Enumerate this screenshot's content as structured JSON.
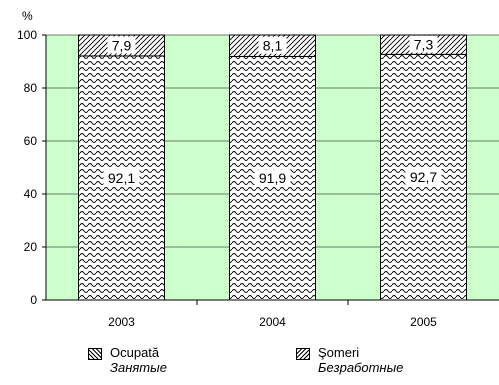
{
  "chart_data": {
    "type": "bar",
    "stacked": true,
    "unit_label": "%",
    "ylim": [
      0,
      100
    ],
    "yticks": [
      0,
      20,
      40,
      60,
      80,
      100
    ],
    "categories": [
      "2003",
      "2004",
      "2005"
    ],
    "series": [
      {
        "name": "Ocupată",
        "name_ru": "Занятые",
        "values": [
          92.1,
          91.9,
          92.7
        ],
        "labels": [
          "92,1",
          "91,9",
          "92,7"
        ],
        "pattern": "wave"
      },
      {
        "name": "Şomeri",
        "name_ru": "Безработные",
        "values": [
          7.9,
          8.1,
          7.3
        ],
        "labels": [
          "7,9",
          "8,1",
          "7,3"
        ],
        "pattern": "diagonal"
      }
    ],
    "colors": {
      "plot_background": "#ccffcc",
      "bar_fill": "#ffffff",
      "pattern_stroke": "#000000"
    },
    "grid": true,
    "legend_position": "bottom"
  }
}
